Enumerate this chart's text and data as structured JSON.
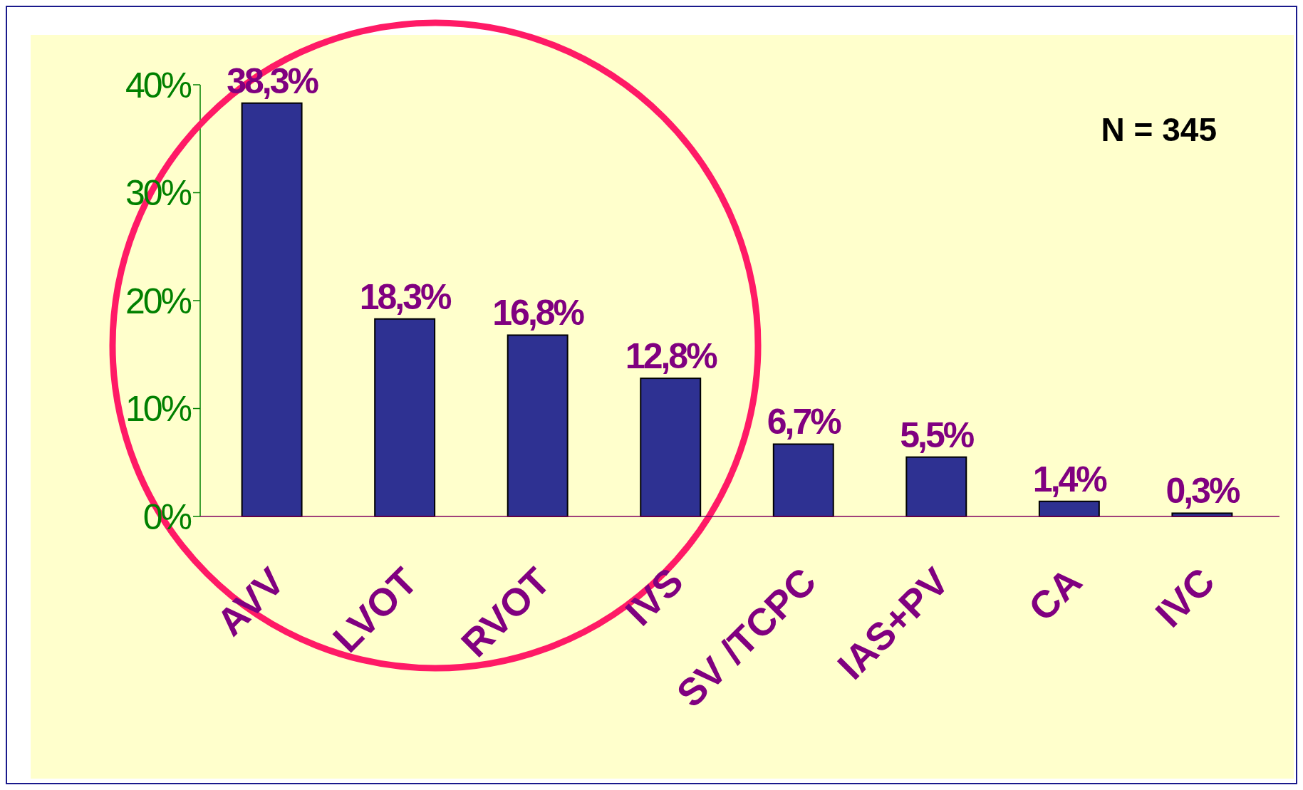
{
  "chart_data": {
    "type": "bar",
    "categories": [
      "AVV",
      "LVOT",
      "RVOT",
      "IVS",
      "SV /TCPC",
      "IAS+PV",
      "CA",
      "IVC"
    ],
    "values": [
      38.3,
      18.3,
      16.8,
      12.8,
      6.7,
      5.5,
      1.4,
      0.3
    ],
    "value_labels": [
      "38,3%",
      "18,3%",
      "16,8%",
      "12,8%",
      "6,7%",
      "5,5%",
      "1,4%",
      "0,3%"
    ],
    "color": "#2e3192",
    "ylim": [
      0,
      40
    ],
    "yticks": [
      {
        "value": 0,
        "label": "0%"
      },
      {
        "value": 10,
        "label": "10%"
      },
      {
        "value": 20,
        "label": "20%"
      },
      {
        "value": 30,
        "label": "30%"
      },
      {
        "value": 40,
        "label": "40%"
      }
    ],
    "annotations": [
      "N = 345"
    ],
    "grid": false
  }
}
